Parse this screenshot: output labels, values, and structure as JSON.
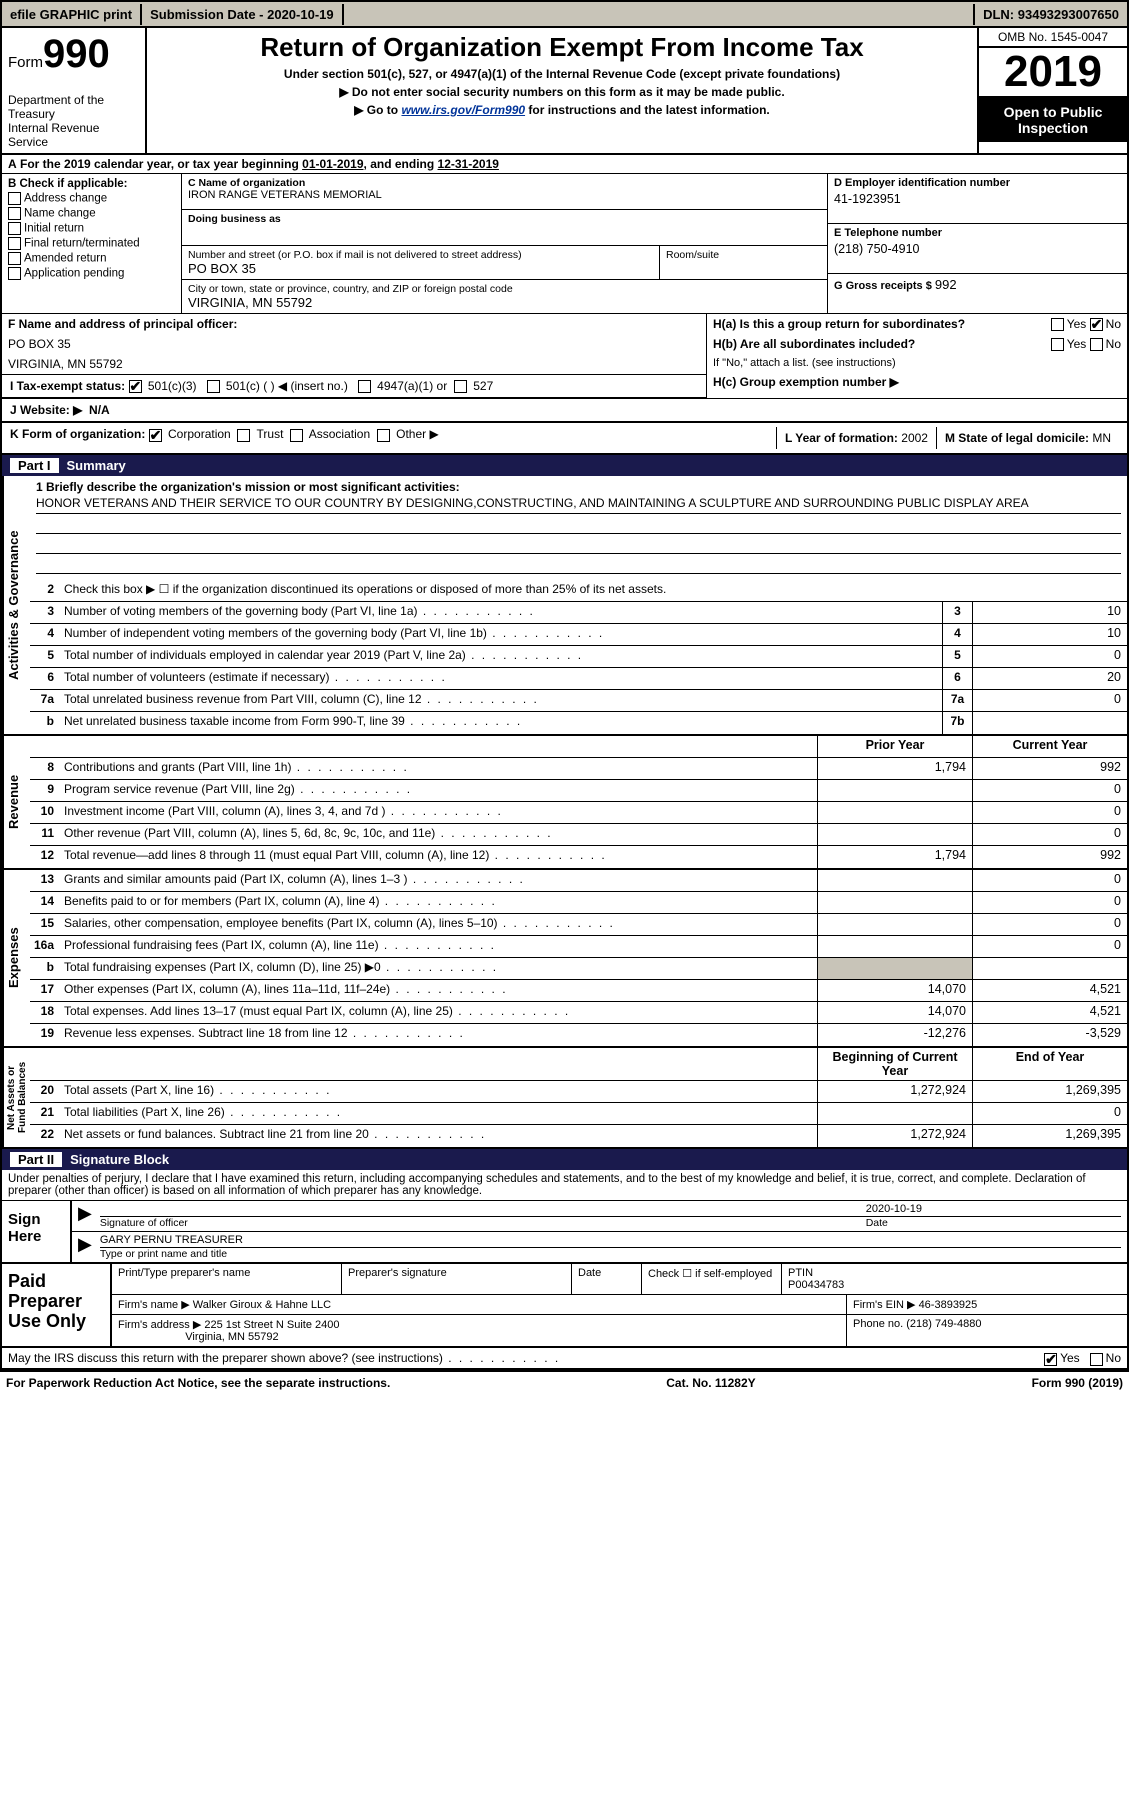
{
  "topbar": {
    "efile": "efile GRAPHIC print",
    "subdate_label": "Submission Date - ",
    "subdate": "2020-10-19",
    "dln_label": "DLN: ",
    "dln": "93493293007650"
  },
  "header": {
    "form_label": "Form",
    "form_num": "990",
    "dept": "Department of the Treasury\nInternal Revenue Service",
    "title": "Return of Organization Exempt From Income Tax",
    "sub1": "Under section 501(c), 527, or 4947(a)(1) of the Internal Revenue Code (except private foundations)",
    "sub2": "▶ Do not enter social security numbers on this form as it may be made public.",
    "sub3_pre": "▶ Go to ",
    "sub3_link": "www.irs.gov/Form990",
    "sub3_post": " for instructions and the latest information.",
    "omb": "OMB No. 1545-0047",
    "year": "2019",
    "otp": "Open to Public Inspection"
  },
  "period": {
    "text_a": "For the 2019 calendar year, or tax year beginning ",
    "begin": "01-01-2019",
    "text_b": ", and ending ",
    "end": "12-31-2019"
  },
  "section_b": {
    "label": "B Check if applicable:",
    "opts": [
      "Address change",
      "Name change",
      "Initial return",
      "Final return/terminated",
      "Amended return",
      "Application pending"
    ]
  },
  "section_c": {
    "name_label": "C Name of organization",
    "name": "IRON RANGE VETERANS MEMORIAL",
    "dba_label": "Doing business as",
    "dba": "",
    "addr_label": "Number and street (or P.O. box if mail is not delivered to street address)",
    "room_label": "Room/suite",
    "addr": "PO BOX 35",
    "city_label": "City or town, state or province, country, and ZIP or foreign postal code",
    "city": "VIRGINIA, MN  55792"
  },
  "section_d": {
    "label": "D Employer identification number",
    "val": "41-1923951"
  },
  "section_e": {
    "label": "E Telephone number",
    "val": "(218) 750-4910"
  },
  "section_g": {
    "label": "G Gross receipts $ ",
    "val": "992"
  },
  "section_f": {
    "label": "F  Name and address of principal officer:",
    "addr1": "PO BOX 35",
    "addr2": "VIRGINIA, MN  55792"
  },
  "section_h": {
    "ha": "H(a)  Is this a group return for subordinates?",
    "ha_yes": "Yes",
    "ha_no": "No",
    "hb": "H(b)  Are all subordinates included?",
    "hb_yes": "Yes",
    "hb_no": "No",
    "hb_note": "If \"No,\" attach a list. (see instructions)",
    "hc": "H(c)  Group exemption number ▶"
  },
  "section_i": {
    "label": "I   Tax-exempt status:",
    "opt1": "501(c)(3)",
    "opt2": "501(c) (  ) ◀ (insert no.)",
    "opt3": "4947(a)(1) or",
    "opt4": "527"
  },
  "section_j": {
    "label": "J   Website: ▶",
    "val": "N/A"
  },
  "section_k": {
    "label": "K Form of organization:",
    "opts": [
      "Corporation",
      "Trust",
      "Association",
      "Other ▶"
    ]
  },
  "section_l": {
    "label": "L Year of formation: ",
    "val": "2002"
  },
  "section_m": {
    "label": "M State of legal domicile: ",
    "val": "MN"
  },
  "part1": {
    "num": "Part I",
    "title": "Summary"
  },
  "mission": {
    "label": "1  Briefly describe the organization's mission or most significant activities:",
    "text": "HONOR VETERANS AND THEIR SERVICE TO OUR COUNTRY BY DESIGNING,CONSTRUCTING, AND MAINTAINING A SCULPTURE AND SURROUNDING PUBLIC DISPLAY AREA"
  },
  "line2": "Check this box ▶ ☐  if the organization discontinued its operations or disposed of more than 25% of its net assets.",
  "gov_lines": [
    {
      "n": "3",
      "d": "Number of voting members of the governing body (Part VI, line 1a)",
      "b": "3",
      "v": "10"
    },
    {
      "n": "4",
      "d": "Number of independent voting members of the governing body (Part VI, line 1b)",
      "b": "4",
      "v": "10"
    },
    {
      "n": "5",
      "d": "Total number of individuals employed in calendar year 2019 (Part V, line 2a)",
      "b": "5",
      "v": "0"
    },
    {
      "n": "6",
      "d": "Total number of volunteers (estimate if necessary)",
      "b": "6",
      "v": "20"
    },
    {
      "n": "7a",
      "d": "Total unrelated business revenue from Part VIII, column (C), line 12",
      "b": "7a",
      "v": "0"
    },
    {
      "n": "b",
      "d": "Net unrelated business taxable income from Form 990-T, line 39",
      "b": "7b",
      "v": ""
    }
  ],
  "col_prior": "Prior Year",
  "col_current": "Current Year",
  "rev_lines": [
    {
      "n": "8",
      "d": "Contributions and grants (Part VIII, line 1h)",
      "p": "1,794",
      "c": "992"
    },
    {
      "n": "9",
      "d": "Program service revenue (Part VIII, line 2g)",
      "p": "",
      "c": "0"
    },
    {
      "n": "10",
      "d": "Investment income (Part VIII, column (A), lines 3, 4, and 7d )",
      "p": "",
      "c": "0"
    },
    {
      "n": "11",
      "d": "Other revenue (Part VIII, column (A), lines 5, 6d, 8c, 9c, 10c, and 11e)",
      "p": "",
      "c": "0"
    },
    {
      "n": "12",
      "d": "Total revenue—add lines 8 through 11 (must equal Part VIII, column (A), line 12)",
      "p": "1,794",
      "c": "992"
    }
  ],
  "exp_lines": [
    {
      "n": "13",
      "d": "Grants and similar amounts paid (Part IX, column (A), lines 1–3 )",
      "p": "",
      "c": "0"
    },
    {
      "n": "14",
      "d": "Benefits paid to or for members (Part IX, column (A), line 4)",
      "p": "",
      "c": "0"
    },
    {
      "n": "15",
      "d": "Salaries, other compensation, employee benefits (Part IX, column (A), lines 5–10)",
      "p": "",
      "c": "0"
    },
    {
      "n": "16a",
      "d": "Professional fundraising fees (Part IX, column (A), line 11e)",
      "p": "",
      "c": "0"
    },
    {
      "n": "b",
      "d": "Total fundraising expenses (Part IX, column (D), line 25) ▶0",
      "p": "SHADE",
      "c": "SHADE"
    },
    {
      "n": "17",
      "d": "Other expenses (Part IX, column (A), lines 11a–11d, 11f–24e)",
      "p": "14,070",
      "c": "4,521"
    },
    {
      "n": "18",
      "d": "Total expenses. Add lines 13–17 (must equal Part IX, column (A), line 25)",
      "p": "14,070",
      "c": "4,521"
    },
    {
      "n": "19",
      "d": "Revenue less expenses. Subtract line 18 from line 12",
      "p": "-12,276",
      "c": "-3,529"
    }
  ],
  "col_boy": "Beginning of Current Year",
  "col_eoy": "End of Year",
  "na_lines": [
    {
      "n": "20",
      "d": "Total assets (Part X, line 16)",
      "p": "1,272,924",
      "c": "1,269,395"
    },
    {
      "n": "21",
      "d": "Total liabilities (Part X, line 26)",
      "p": "",
      "c": "0"
    },
    {
      "n": "22",
      "d": "Net assets or fund balances. Subtract line 21 from line 20",
      "p": "1,272,924",
      "c": "1,269,395"
    }
  ],
  "part2": {
    "num": "Part II",
    "title": "Signature Block"
  },
  "sig_decl": "Under penalties of perjury, I declare that I have examined this return, including accompanying schedules and statements, and to the best of my knowledge and belief, it is true, correct, and complete. Declaration of preparer (other than officer) is based on all information of which preparer has any knowledge.",
  "sign_here": "Sign Here",
  "sig": {
    "officer": "Signature of officer",
    "date_label": "Date",
    "date": "2020-10-19",
    "name": "GARY PERNU  TREASURER",
    "name_label": "Type or print name and title"
  },
  "paid": {
    "title": "Paid Preparer Use Only",
    "h1": "Print/Type preparer's name",
    "h2": "Preparer's signature",
    "h3": "Date",
    "h4_pre": "Check ☐ if self-employed",
    "h5": "PTIN",
    "ptin": "P00434783",
    "firm_label": "Firm's name      ▶ ",
    "firm": "Walker Giroux & Hahne LLC",
    "ein_label": "Firm's EIN ▶ ",
    "ein": "46-3893925",
    "addr_label": "Firm's address ▶ ",
    "addr1": "225 1st Street N Suite 2400",
    "addr2": "Virginia, MN  55792",
    "phone_label": "Phone no. ",
    "phone": "(218) 749-4880"
  },
  "discuss": {
    "q": "May the IRS discuss this return with the preparer shown above? (see instructions)",
    "yes": "Yes",
    "no": "No"
  },
  "footer": {
    "pra": "For Paperwork Reduction Act Notice, see the separate instructions.",
    "cat": "Cat. No. 11282Y",
    "form": "Form 990 (2019)"
  },
  "vtabs": {
    "gov": "Activities & Governance",
    "rev": "Revenue",
    "exp": "Expenses",
    "na": "Net Assets or\nFund Balances"
  }
}
